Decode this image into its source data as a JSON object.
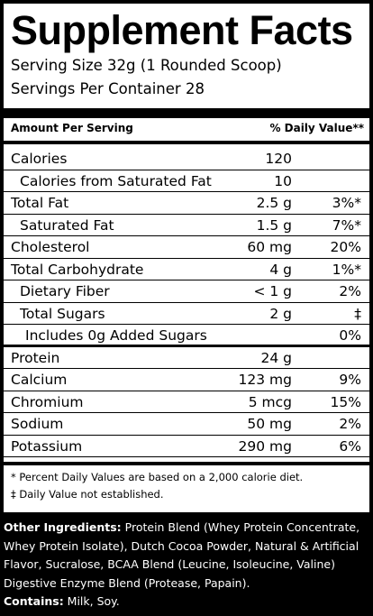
{
  "panel": {
    "title": "Supplement Facts",
    "serving_size": "Serving Size 32g (1 Rounded Scoop)",
    "servings_per_container": "Servings Per Container  28",
    "header_amount": "Amount Per Serving",
    "header_dv": "% Daily Value**",
    "rows": [
      {
        "name": "Calories",
        "amount": "120",
        "dv": "",
        "indent": 0
      },
      {
        "name": "Calories from Saturated Fat",
        "amount": "10",
        "dv": "",
        "indent": 1
      },
      {
        "name": "Total Fat",
        "amount": "2.5 g",
        "dv": "3%*",
        "indent": 0
      },
      {
        "name": "Saturated Fat",
        "amount": "1.5 g",
        "dv": "7%*",
        "indent": 1
      },
      {
        "name": "Cholesterol",
        "amount": "60 mg",
        "dv": "20%",
        "indent": 0
      },
      {
        "name": "Total Carbohydrate",
        "amount": "4 g",
        "dv": "1%*",
        "indent": 0
      },
      {
        "name": "Dietary Fiber",
        "amount": "< 1 g",
        "dv": "2%",
        "indent": 1
      },
      {
        "name": "Total Sugars",
        "amount": "2 g",
        "dv": "‡",
        "indent": 1
      },
      {
        "name": "Includes 0g Added Sugars",
        "amount": "",
        "dv": "0%",
        "indent": 2
      },
      {
        "name": "Protein",
        "amount": "24 g",
        "dv": "",
        "indent": 0
      },
      {
        "name": "Calcium",
        "amount": "123 mg",
        "dv": "9%",
        "indent": 0
      },
      {
        "name": "Chromium",
        "amount": "5 mcg",
        "dv": "15%",
        "indent": 0
      },
      {
        "name": "Sodium",
        "amount": "50 mg",
        "dv": "2%",
        "indent": 0
      },
      {
        "name": "Potassium",
        "amount": "290 mg",
        "dv": "6%",
        "indent": 0
      }
    ],
    "footnote_1": "* Percent Daily Values are based on a 2,000 calorie diet.",
    "footnote_2": "‡ Daily Value not established."
  },
  "ingredients": {
    "label": "Other Ingredients:",
    "text": " Protein Blend (Whey Protein Concentrate, Whey Protein Isolate), Dutch Cocoa Powder, Natural & Artificial Flavor, Sucralose, BCAA Blend (Leucine, Isoleucine, Valine) Digestive Enzyme Blend (Protease, Papain).",
    "contains_label": "Contains:",
    "contains_text": " Milk, Soy."
  }
}
